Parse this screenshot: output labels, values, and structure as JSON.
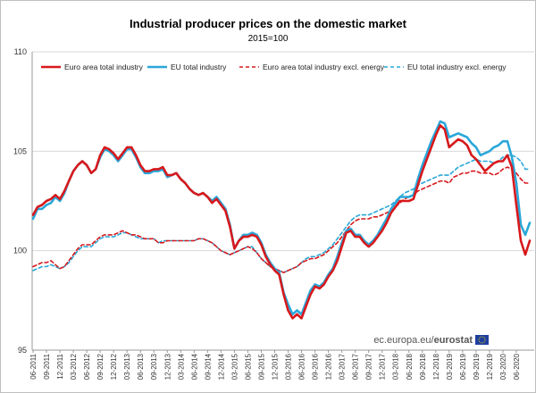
{
  "chart_data": {
    "type": "line",
    "title": "Industrial producer prices on the domestic market",
    "subtitle": "2015=100",
    "xlabel": "",
    "ylabel": "",
    "ylim": [
      95,
      110
    ],
    "yticks": [
      95,
      100,
      105,
      110
    ],
    "grid": true,
    "legend_position": "top",
    "x_start": "06-2011",
    "x_end": "06-2020",
    "x_ticks": [
      "06-2011",
      "09-2011",
      "12-2011",
      "03-2012",
      "06-2012",
      "09-2012",
      "12-2012",
      "03-2013",
      "06-2013",
      "09-2013",
      "12-2013",
      "03-2014",
      "06-2014",
      "09-2014",
      "12-2014",
      "03-2015",
      "06-2015",
      "09-2015",
      "12-2015",
      "03-2016",
      "06-2016",
      "09-2016",
      "12-2016",
      "03-2017",
      "06-2017",
      "09-2017",
      "12-2017",
      "03-2018",
      "06-2018",
      "09-2018",
      "12-2018",
      "03-2019",
      "06-2019",
      "09-2019",
      "12-2019",
      "03-2020",
      "06-2020"
    ],
    "series": [
      {
        "name": "Euro area total industry",
        "color": "#d7191c",
        "style": "solid",
        "values": [
          101.8,
          102.2,
          102.3,
          102.5,
          102.6,
          102.8,
          102.6,
          103.0,
          103.5,
          104.0,
          104.3,
          104.5,
          104.3,
          103.9,
          104.1,
          104.8,
          105.2,
          105.1,
          104.9,
          104.6,
          104.9,
          105.2,
          105.2,
          104.8,
          104.3,
          104.0,
          104.0,
          104.1,
          104.1,
          104.2,
          103.8,
          103.8,
          103.9,
          103.6,
          103.4,
          103.1,
          102.9,
          102.8,
          102.9,
          102.7,
          102.4,
          102.6,
          102.3,
          102.0,
          101.2,
          100.1,
          100.5,
          100.7,
          100.7,
          100.8,
          100.7,
          100.3,
          99.7,
          99.3,
          99.0,
          98.8,
          97.8,
          97.0,
          96.6,
          96.8,
          96.6,
          97.2,
          97.8,
          98.2,
          98.1,
          98.3,
          98.7,
          99.0,
          99.5,
          100.2,
          100.9,
          101.0,
          100.7,
          100.7,
          100.4,
          100.2,
          100.4,
          100.7,
          101.0,
          101.4,
          101.9,
          102.2,
          102.5,
          102.5,
          102.5,
          102.6,
          103.3,
          104.0,
          104.6,
          105.2,
          105.8,
          106.3,
          106.1,
          105.2,
          105.4,
          105.6,
          105.5,
          105.3,
          104.8,
          104.6,
          104.3,
          104.0,
          104.2,
          104.4,
          104.5,
          104.5,
          104.8,
          104.2,
          102.3,
          100.5,
          99.8,
          100.5
        ]
      },
      {
        "name": "EU total industry",
        "color": "#2aa7d9",
        "style": "solid",
        "values": [
          101.6,
          102.1,
          102.1,
          102.3,
          102.4,
          102.7,
          102.5,
          102.9,
          103.5,
          104.0,
          104.3,
          104.5,
          104.3,
          103.9,
          104.1,
          104.7,
          105.1,
          105.0,
          104.8,
          104.5,
          104.8,
          105.1,
          105.1,
          104.7,
          104.2,
          103.9,
          103.9,
          104.0,
          104.0,
          104.1,
          103.7,
          103.8,
          103.9,
          103.6,
          103.4,
          103.1,
          102.9,
          102.8,
          102.9,
          102.7,
          102.5,
          102.7,
          102.4,
          102.1,
          101.3,
          100.1,
          100.5,
          100.8,
          100.8,
          100.9,
          100.8,
          100.4,
          99.8,
          99.4,
          99.1,
          98.9,
          97.9,
          97.3,
          96.8,
          97.0,
          96.8,
          97.4,
          98.0,
          98.3,
          98.2,
          98.4,
          98.8,
          99.1,
          99.7,
          100.4,
          101.0,
          101.1,
          100.8,
          100.8,
          100.5,
          100.3,
          100.5,
          100.8,
          101.2,
          101.6,
          102.1,
          102.4,
          102.7,
          102.7,
          102.7,
          102.8,
          103.6,
          104.3,
          104.9,
          105.5,
          106.0,
          106.5,
          106.4,
          105.7,
          105.8,
          105.9,
          105.8,
          105.7,
          105.4,
          105.2,
          104.8,
          104.9,
          105.0,
          105.2,
          105.3,
          105.5,
          105.5,
          104.7,
          103.4,
          101.3,
          100.8,
          101.4
        ]
      },
      {
        "name": "Euro area total industry excl. energy",
        "color": "#d7191c",
        "style": "dashed",
        "values": [
          99.2,
          99.3,
          99.4,
          99.4,
          99.5,
          99.3,
          99.1,
          99.2,
          99.5,
          99.8,
          100.1,
          100.3,
          100.3,
          100.3,
          100.5,
          100.7,
          100.8,
          100.8,
          100.8,
          100.9,
          101.0,
          100.9,
          100.8,
          100.8,
          100.7,
          100.6,
          100.6,
          100.6,
          100.4,
          100.4,
          100.5,
          100.5,
          100.5,
          100.5,
          100.5,
          100.5,
          100.5,
          100.6,
          100.6,
          100.5,
          100.4,
          100.2,
          100.0,
          99.9,
          99.8,
          99.9,
          100.0,
          100.1,
          100.2,
          100.1,
          99.9,
          99.6,
          99.4,
          99.2,
          99.1,
          99.0,
          98.9,
          99.0,
          99.1,
          99.2,
          99.4,
          99.5,
          99.6,
          99.6,
          99.7,
          99.8,
          100.0,
          100.2,
          100.4,
          100.7,
          101.0,
          101.3,
          101.5,
          101.6,
          101.6,
          101.6,
          101.7,
          101.7,
          101.8,
          101.9,
          102.0,
          102.2,
          102.4,
          102.6,
          102.7,
          102.8,
          103.0,
          103.1,
          103.2,
          103.3,
          103.4,
          103.5,
          103.5,
          103.4,
          103.7,
          103.8,
          103.9,
          103.9,
          104.0,
          104.0,
          103.9,
          103.9,
          103.9,
          103.8,
          103.9,
          104.1,
          104.2,
          104.1,
          103.9,
          103.6,
          103.4,
          103.4
        ]
      },
      {
        "name": "EU total industry excl. energy",
        "color": "#2aa7d9",
        "style": "dashed",
        "values": [
          99.0,
          99.1,
          99.2,
          99.2,
          99.3,
          99.2,
          99.1,
          99.2,
          99.4,
          99.7,
          100.0,
          100.2,
          100.2,
          100.2,
          100.4,
          100.6,
          100.7,
          100.7,
          100.7,
          100.8,
          100.9,
          100.9,
          100.8,
          100.7,
          100.6,
          100.6,
          100.6,
          100.6,
          100.4,
          100.5,
          100.5,
          100.5,
          100.5,
          100.5,
          100.5,
          100.5,
          100.5,
          100.6,
          100.6,
          100.5,
          100.4,
          100.2,
          100.0,
          99.9,
          99.8,
          99.9,
          100.0,
          100.1,
          100.2,
          100.2,
          99.9,
          99.6,
          99.4,
          99.2,
          99.1,
          99.0,
          98.9,
          99.0,
          99.1,
          99.2,
          99.4,
          99.6,
          99.7,
          99.7,
          99.8,
          99.9,
          100.1,
          100.3,
          100.6,
          100.9,
          101.2,
          101.5,
          101.7,
          101.8,
          101.8,
          101.8,
          101.9,
          102.0,
          102.1,
          102.2,
          102.3,
          102.5,
          102.7,
          102.9,
          103.0,
          103.1,
          103.3,
          103.4,
          103.5,
          103.6,
          103.7,
          103.8,
          103.8,
          103.8,
          104.0,
          104.2,
          104.3,
          104.4,
          104.5,
          104.6,
          104.5,
          104.5,
          104.5,
          104.4,
          104.5,
          104.7,
          104.8,
          104.8,
          104.7,
          104.5,
          104.1,
          104.1
        ]
      }
    ]
  },
  "source": {
    "prefix": "ec.europa.eu/",
    "brand": "eurostat"
  },
  "colors": {
    "euro_area": "#d7191c",
    "eu": "#2aa7d9",
    "axis": "#999999",
    "grid": "#d9d9d9",
    "eu_flag_blue": "#1f3f9f",
    "eu_flag_star": "#f5d000"
  }
}
